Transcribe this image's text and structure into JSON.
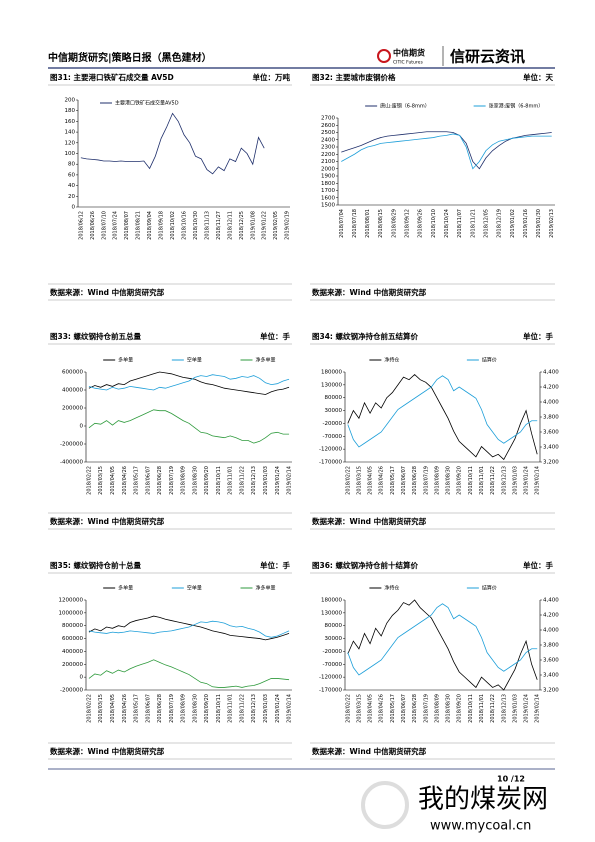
{
  "header": {
    "title": "中信期货研究|策略日报（黑色建材）",
    "logo_text": "中信期货",
    "logo_sub": "CITIC Futures",
    "brand": "信研云资讯"
  },
  "chart_data": [
    {
      "type": "line",
      "title": "图31: 主要港口铁矿石成交量  AV5D",
      "unit": "单位：万吨",
      "source": "数据来源：Wind  中信期货研究部",
      "legend": "inside-top",
      "categories": [
        "2018/06/12",
        null,
        "2018/06/26",
        null,
        "2018/07/10",
        null,
        "2018/07/24",
        null,
        "2018/08/07",
        null,
        "2018/08/21",
        null,
        "2018/09/04",
        null,
        "2018/09/18",
        null,
        "2018/10/02",
        null,
        "2018/10/16",
        null,
        "2018/10/30",
        null,
        "2018/11/13",
        null,
        "2018/11/27",
        null,
        "2018/12/11",
        null,
        "2018/12/25",
        null,
        "2019/01/08",
        null,
        "2019/01/22",
        null,
        "2019/02/05",
        null,
        "2019/02/19"
      ],
      "series": [
        {
          "name": "主要港口铁矿石成交量AV5D",
          "color": "#1f2f6b",
          "values": [
            92,
            90,
            89,
            88,
            86,
            86,
            85,
            86,
            85,
            85,
            85,
            86,
            72,
            95,
            128,
            150,
            175,
            160,
            135,
            120,
            95,
            90,
            70,
            62,
            75,
            68,
            90,
            85,
            110,
            100,
            80,
            130,
            110,
            null,
            null,
            null,
            null
          ]
        }
      ],
      "ylim": [
        0,
        200
      ],
      "yticks": [
        0,
        20,
        40,
        60,
        80,
        100,
        120,
        140,
        160,
        180,
        200
      ]
    },
    {
      "type": "line",
      "title": "图32: 主要城市废钢价格",
      "unit": "单位：天",
      "source": "数据来源：Wind  中信期货研究部",
      "legend": "top",
      "categories": [
        "2018/07/04",
        null,
        "2018/07/18",
        null,
        "2018/08/01",
        null,
        "2018/08/15",
        null,
        "2018/08/29",
        null,
        "2018/09/12",
        null,
        "2018/09/26",
        null,
        "2018/10/10",
        null,
        "2018/10/24",
        null,
        "2018/11/07",
        null,
        "2018/11/21",
        null,
        "2018/12/05",
        null,
        "2018/12/19",
        null,
        "2019/01/02",
        null,
        "2019/01/16",
        null,
        "2019/01/30",
        null,
        "2019/02/13"
      ],
      "series": [
        {
          "name": "唐山:废钢（6-8mm）",
          "color": "#1f2f6b",
          "values": [
            2230,
            2260,
            2290,
            2320,
            2360,
            2400,
            2430,
            2450,
            2460,
            2470,
            2480,
            2490,
            2500,
            2510,
            2510,
            2510,
            2510,
            2500,
            2460,
            2350,
            2100,
            2000,
            2150,
            2250,
            2320,
            2380,
            2420,
            2440,
            2460,
            2470,
            2480,
            2490,
            2500
          ]
        },
        {
          "name": "张家港:废钢（6-8mm）",
          "color": "#1e9fd9",
          "values": [
            2100,
            2150,
            2200,
            2260,
            2300,
            2320,
            2350,
            2360,
            2370,
            2380,
            2390,
            2400,
            2410,
            2420,
            2430,
            2450,
            2460,
            2480,
            2460,
            2300,
            2000,
            2100,
            2250,
            2330,
            2380,
            2400,
            2420,
            2430,
            2440,
            2450,
            2450,
            2450,
            2450
          ]
        }
      ],
      "ylim": [
        1500,
        2700
      ],
      "yticks": [
        1500,
        1600,
        1700,
        1800,
        1900,
        2000,
        2100,
        2200,
        2300,
        2400,
        2500,
        2600,
        2700
      ]
    },
    {
      "type": "line",
      "title": "图33: 螺纹钢持仓前五总量",
      "unit": "单位：手",
      "source": "数据来源：Wind  中信期货研究部",
      "legend": "top",
      "categories": [
        "2018/02/22",
        null,
        "2018/03/15",
        null,
        "2018/04/05",
        null,
        "2018/04/26",
        null,
        "2018/05/17",
        null,
        "2018/06/07",
        null,
        "2018/06/28",
        null,
        "2018/07/19",
        null,
        "2018/08/09",
        null,
        "2018/08/30",
        null,
        "2018/09/20",
        null,
        "2018/10/11",
        null,
        "2018/11/01",
        null,
        "2018/11/22",
        null,
        "2018/12/13",
        null,
        "2019/01/03",
        null,
        "2019/01/24",
        null,
        "2019/02/14"
      ],
      "series": [
        {
          "name": "多单量",
          "color": "#000000",
          "values": [
            420000,
            450000,
            430000,
            460000,
            440000,
            470000,
            460000,
            500000,
            520000,
            540000,
            560000,
            580000,
            600000,
            590000,
            580000,
            560000,
            540000,
            530000,
            520000,
            490000,
            470000,
            460000,
            440000,
            420000,
            410000,
            400000,
            390000,
            380000,
            370000,
            360000,
            350000,
            380000,
            400000,
            410000,
            430000
          ]
        },
        {
          "name": "空单量",
          "color": "#1e9fd9",
          "values": [
            440000,
            420000,
            410000,
            400000,
            430000,
            410000,
            420000,
            440000,
            430000,
            420000,
            410000,
            400000,
            430000,
            420000,
            440000,
            460000,
            480000,
            500000,
            540000,
            560000,
            550000,
            570000,
            560000,
            550000,
            520000,
            530000,
            550000,
            540000,
            560000,
            530000,
            480000,
            460000,
            470000,
            500000,
            520000
          ]
        },
        {
          "name": "净多单量",
          "color": "#2e9a3c",
          "values": [
            -20000,
            30000,
            20000,
            60000,
            10000,
            60000,
            40000,
            60000,
            90000,
            120000,
            150000,
            180000,
            170000,
            170000,
            140000,
            100000,
            60000,
            30000,
            -20000,
            -70000,
            -80000,
            -110000,
            -120000,
            -130000,
            -110000,
            -130000,
            -160000,
            -160000,
            -190000,
            -170000,
            -130000,
            -80000,
            -70000,
            -90000,
            -90000
          ]
        }
      ],
      "ylim": [
        -400000,
        600000
      ],
      "yticks": [
        -400000,
        -200000,
        0,
        200000,
        400000,
        600000
      ]
    },
    {
      "type": "line",
      "title": "图34: 螺纹钢净持仓前五结算价",
      "unit": "单位：手",
      "source": "数据来源：Wind  中信期货研究部",
      "legend": "top",
      "categories": [
        "2018/02/22",
        null,
        "2018/03/15",
        null,
        "2018/04/05",
        null,
        "2018/04/26",
        null,
        "2018/05/17",
        null,
        "2018/06/07",
        null,
        "2018/06/28",
        null,
        "2018/07/19",
        null,
        "2018/08/09",
        null,
        "2018/08/30",
        null,
        "2018/09/20",
        null,
        "2018/10/11",
        null,
        "2018/11/01",
        null,
        "2018/11/22",
        null,
        "2018/12/13",
        null,
        "2019/01/03",
        null,
        "2019/01/24",
        null,
        "2019/02/14"
      ],
      "series": [
        {
          "name": "净持仓",
          "color": "#000000",
          "values": [
            -20000,
            30000,
            0,
            60000,
            20000,
            60000,
            40000,
            80000,
            100000,
            130000,
            160000,
            150000,
            170000,
            150000,
            140000,
            120000,
            80000,
            40000,
            0,
            -50000,
            -90000,
            -110000,
            -130000,
            -150000,
            -110000,
            -130000,
            -150000,
            -140000,
            -160000,
            -120000,
            -80000,
            -20000,
            30000,
            -60000,
            -140000
          ]
        },
        {
          "name": "结算价",
          "color": "#1e9fd9",
          "axis": "y2",
          "values": [
            3700,
            3500,
            3400,
            3450,
            3500,
            3550,
            3600,
            3700,
            3800,
            3900,
            3950,
            4000,
            4050,
            4100,
            4150,
            4200,
            4300,
            4350,
            4300,
            4150,
            4200,
            4150,
            4100,
            4050,
            3900,
            3700,
            3600,
            3500,
            3450,
            3500,
            3550,
            3600,
            3700,
            3750,
            3750
          ]
        }
      ],
      "ylim": [
        -170000,
        180000
      ],
      "yticks": [
        -170000,
        -120000,
        -70000,
        -20000,
        30000,
        80000,
        130000,
        180000
      ],
      "y2lim": [
        3200,
        4400
      ],
      "y2ticks": [
        {
          "value": 3200,
          "label": "3,200"
        },
        {
          "value": 3400,
          "label": "3,400"
        },
        {
          "value": 3600,
          "label": "3,600"
        },
        {
          "value": 3800,
          "label": "3,800"
        },
        {
          "value": 4000,
          "label": "4,000"
        },
        {
          "value": 4200,
          "label": "4,200"
        },
        {
          "value": 4400,
          "label": "4,400"
        }
      ]
    },
    {
      "type": "line",
      "title": "图35: 螺纹钢持仓前十总量",
      "unit": "单位：手",
      "source": "数据来源：Wind  中信期货研究部",
      "legend": "top",
      "categories": [
        "2018/02/22",
        null,
        "2018/03/15",
        null,
        "2018/04/05",
        null,
        "2018/04/26",
        null,
        "2018/05/17",
        null,
        "2018/06/07",
        null,
        "2018/06/28",
        null,
        "2018/07/19",
        null,
        "2018/08/09",
        null,
        "2018/08/30",
        null,
        "2018/09/20",
        null,
        "2018/10/11",
        null,
        "2018/11/01",
        null,
        "2018/11/22",
        null,
        "2018/12/13",
        null,
        "2019/01/03",
        null,
        "2019/01/24",
        null,
        "2019/02/14"
      ],
      "series": [
        {
          "name": "多单量",
          "color": "#000000",
          "values": [
            700000,
            750000,
            720000,
            780000,
            760000,
            800000,
            780000,
            850000,
            880000,
            900000,
            920000,
            950000,
            930000,
            900000,
            880000,
            860000,
            840000,
            820000,
            800000,
            780000,
            750000,
            720000,
            700000,
            680000,
            650000,
            640000,
            630000,
            620000,
            610000,
            600000,
            580000,
            600000,
            620000,
            650000,
            680000
          ]
        },
        {
          "name": "空单量",
          "color": "#1e9fd9",
          "values": [
            720000,
            700000,
            690000,
            680000,
            700000,
            690000,
            700000,
            720000,
            710000,
            700000,
            690000,
            680000,
            700000,
            710000,
            720000,
            740000,
            760000,
            780000,
            820000,
            860000,
            850000,
            870000,
            860000,
            840000,
            800000,
            780000,
            790000,
            760000,
            740000,
            700000,
            640000,
            620000,
            640000,
            680000,
            720000
          ]
        },
        {
          "name": "净多单量",
          "color": "#2e9a3c",
          "values": [
            -20000,
            50000,
            30000,
            100000,
            60000,
            110000,
            80000,
            130000,
            170000,
            200000,
            230000,
            270000,
            230000,
            190000,
            160000,
            120000,
            80000,
            40000,
            -20000,
            -80000,
            -100000,
            -150000,
            -160000,
            -160000,
            -150000,
            -140000,
            -160000,
            -140000,
            -130000,
            -100000,
            -60000,
            -20000,
            -20000,
            -30000,
            -40000
          ]
        }
      ],
      "ylim": [
        -200000,
        1200000
      ],
      "yticks": [
        -200000,
        0,
        200000,
        400000,
        600000,
        800000,
        1000000,
        1200000
      ]
    },
    {
      "type": "line",
      "title": "图36: 螺纹钢净持仓前十结算价",
      "unit": "单位：手",
      "source": "数据来源：Wind  中信期货研究部",
      "legend": "top",
      "categories": [
        "2018/02/22",
        null,
        "2018/03/15",
        null,
        "2018/04/05",
        null,
        "2018/04/26",
        null,
        "2018/05/17",
        null,
        "2018/06/07",
        null,
        "2018/06/28",
        null,
        "2018/07/19",
        null,
        "2018/08/09",
        null,
        "2018/08/30",
        null,
        "2018/09/20",
        null,
        "2018/10/11",
        null,
        "2018/11/01",
        null,
        "2018/11/22",
        null,
        "2018/12/13",
        null,
        "2019/01/03",
        null,
        "2019/01/24",
        null,
        "2019/02/14"
      ],
      "series": [
        {
          "name": "净持仓",
          "color": "#000000",
          "values": [
            -30000,
            20000,
            -10000,
            50000,
            10000,
            70000,
            40000,
            90000,
            120000,
            140000,
            170000,
            160000,
            180000,
            150000,
            130000,
            110000,
            70000,
            30000,
            -10000,
            -60000,
            -100000,
            -120000,
            -140000,
            -160000,
            -120000,
            -140000,
            -160000,
            -150000,
            -170000,
            -130000,
            -90000,
            -30000,
            20000,
            -70000,
            -130000
          ]
        },
        {
          "name": "结算价",
          "color": "#1e9fd9",
          "axis": "y2",
          "values": [
            3700,
            3500,
            3400,
            3450,
            3500,
            3550,
            3600,
            3700,
            3800,
            3900,
            3950,
            4000,
            4050,
            4100,
            4150,
            4200,
            4300,
            4350,
            4300,
            4150,
            4200,
            4150,
            4100,
            4050,
            3900,
            3700,
            3600,
            3500,
            3450,
            3500,
            3550,
            3600,
            3700,
            3750,
            3750
          ]
        }
      ],
      "ylim": [
        -170000,
        180000
      ],
      "yticks": [
        -170000,
        -120000,
        -70000,
        -20000,
        30000,
        80000,
        130000,
        180000
      ],
      "y2lim": [
        3200,
        4400
      ],
      "y2ticks": [
        {
          "value": 3200,
          "label": "3,200"
        },
        {
          "value": 3400,
          "label": "3,400"
        },
        {
          "value": 3600,
          "label": "3,600"
        },
        {
          "value": 3800,
          "label": "3,800"
        },
        {
          "value": 4000,
          "label": "4,000"
        },
        {
          "value": 4200,
          "label": "4,200"
        },
        {
          "value": 4400,
          "label": "4,400"
        }
      ]
    }
  ],
  "footer": {
    "page": "10 /12",
    "watermark": "我的煤炭网",
    "url": "www.mycoal.cn"
  }
}
